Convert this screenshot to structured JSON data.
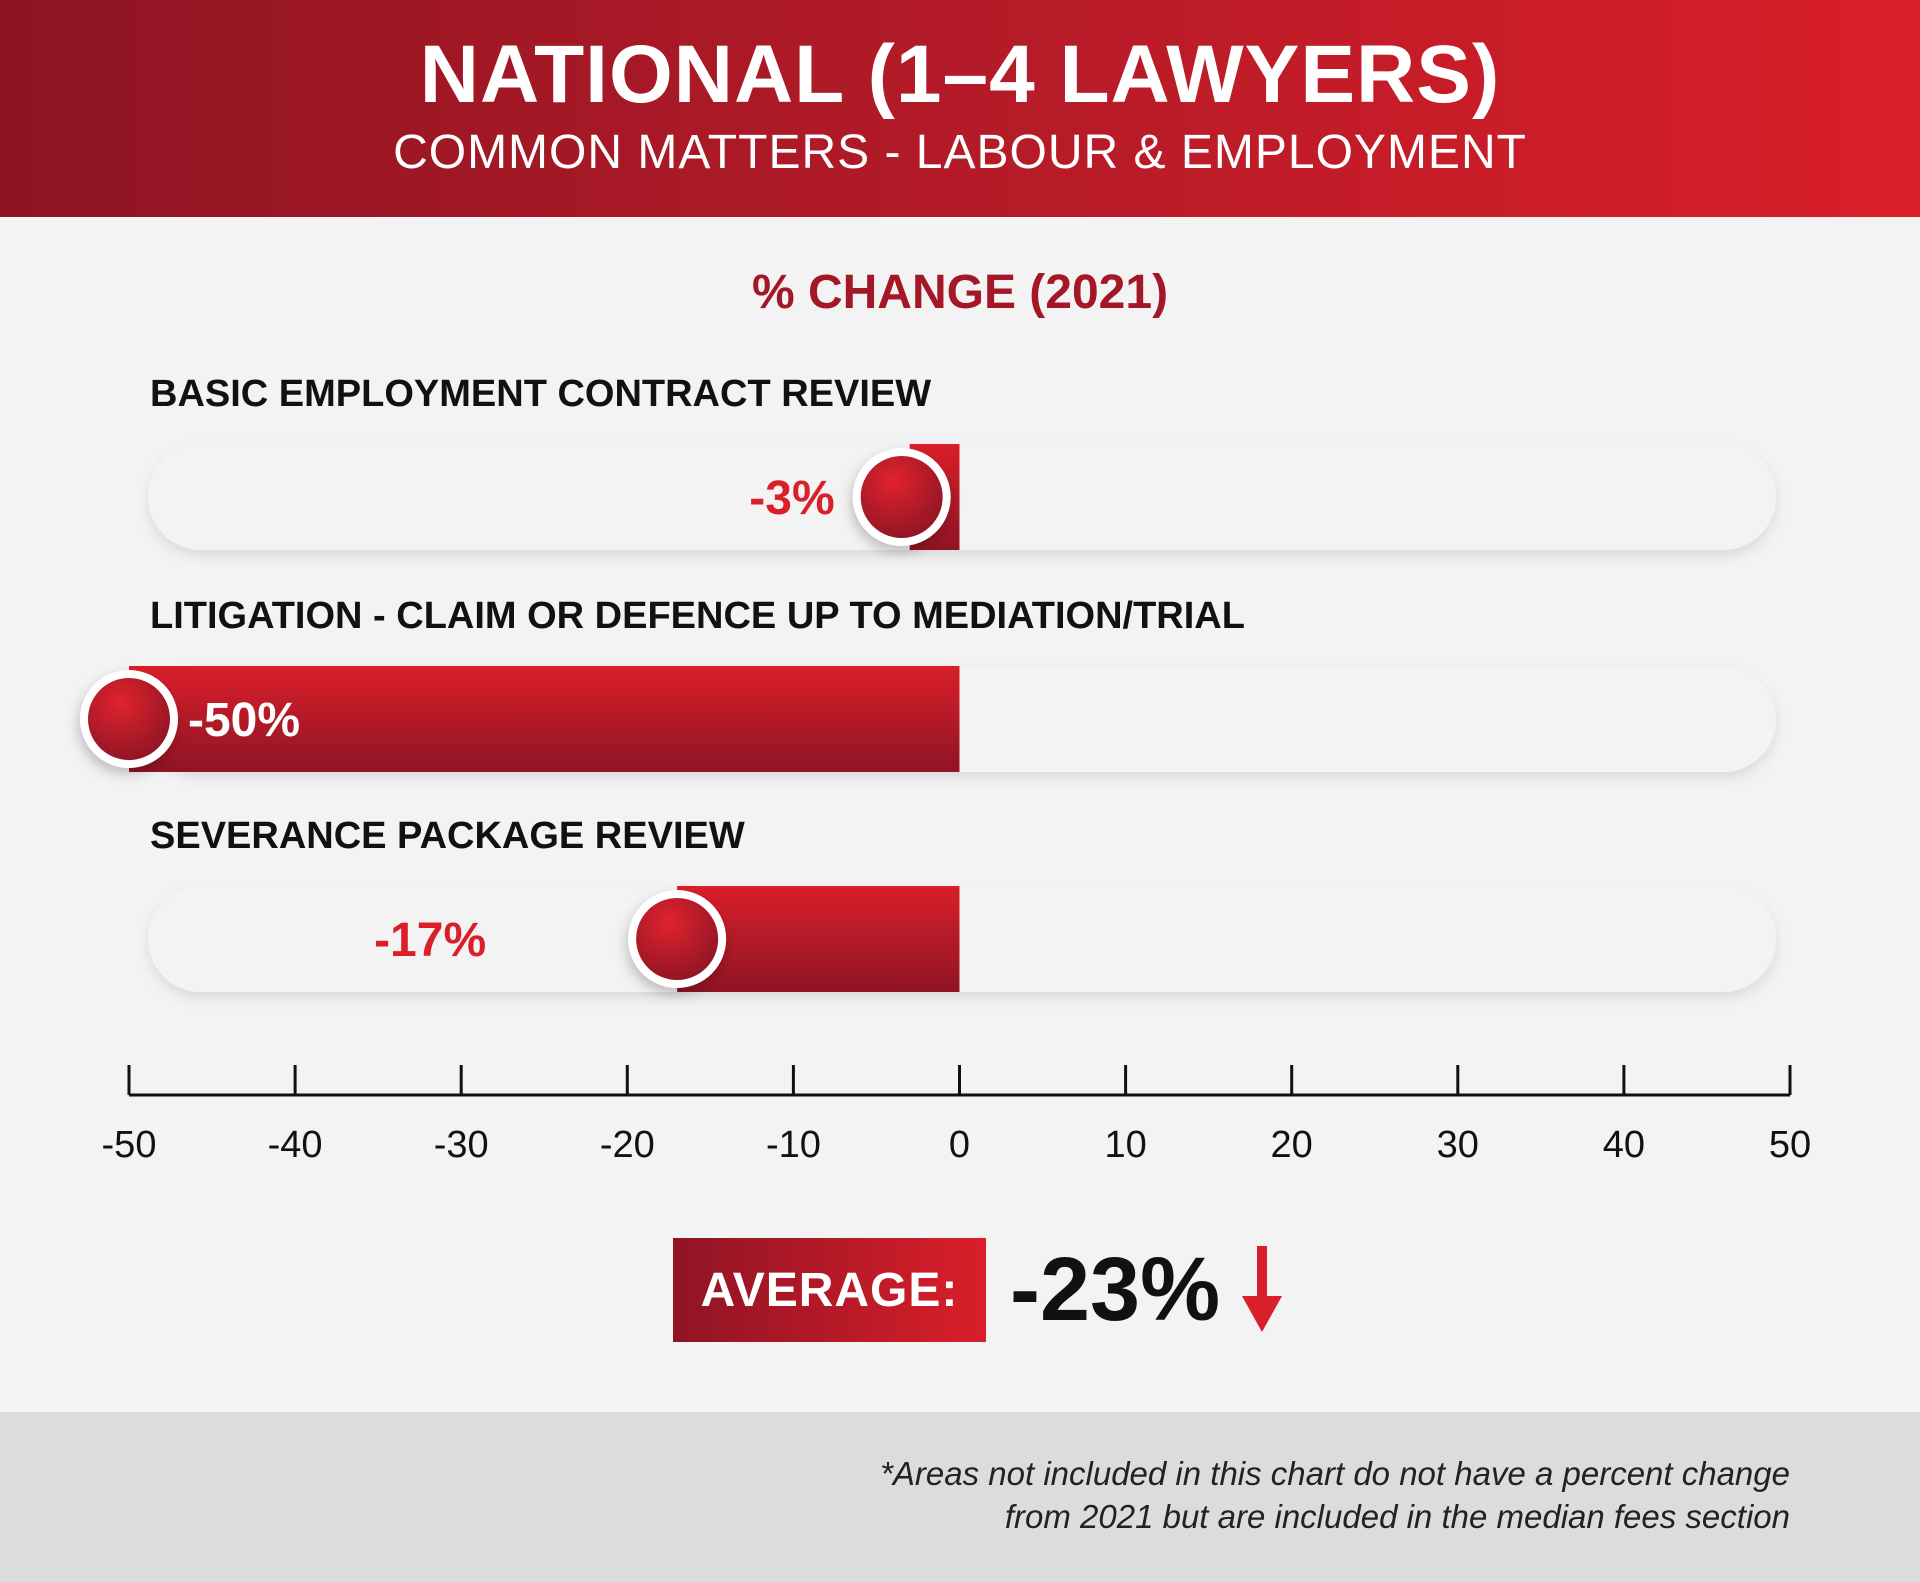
{
  "header": {
    "title": "NATIONAL (1–4 LAWYERS)",
    "subtitle": "COMMON MATTERS - LABOUR & EMPLOYMENT"
  },
  "chart_data": {
    "type": "bar",
    "title": "% CHANGE (2021)",
    "orientation": "horizontal",
    "categories": [
      "BASIC EMPLOYMENT CONTRACT REVIEW",
      "LITIGATION - CLAIM OR DEFENCE UP TO MEDIATION/TRIAL",
      "SEVERANCE PACKAGE REVIEW"
    ],
    "values": [
      -3,
      -50,
      -17
    ],
    "value_labels": [
      "-3%",
      "-50%",
      "-17%"
    ],
    "xlim": [
      -50,
      50
    ],
    "ticks": [
      -50,
      -40,
      -30,
      -20,
      -10,
      0,
      10,
      20,
      30,
      40,
      50
    ],
    "tick_labels": [
      "-50",
      "-40",
      "-30",
      "-20",
      "-10",
      "0",
      "10",
      "20",
      "30",
      "40",
      "50"
    ],
    "grid": false,
    "colors": {
      "bar_dark": "#8f1424",
      "bar_light": "#d91f2a",
      "label": "#d91f2a",
      "track": "#f3f3f3"
    }
  },
  "average": {
    "label": "AVERAGE:",
    "value": "-23%",
    "arrow_icon": "arrow-down-icon"
  },
  "footer": {
    "note_line1": "*Areas not included in this chart do not have a percent change",
    "note_line2": "from 2021 but are included in the median fees section"
  }
}
